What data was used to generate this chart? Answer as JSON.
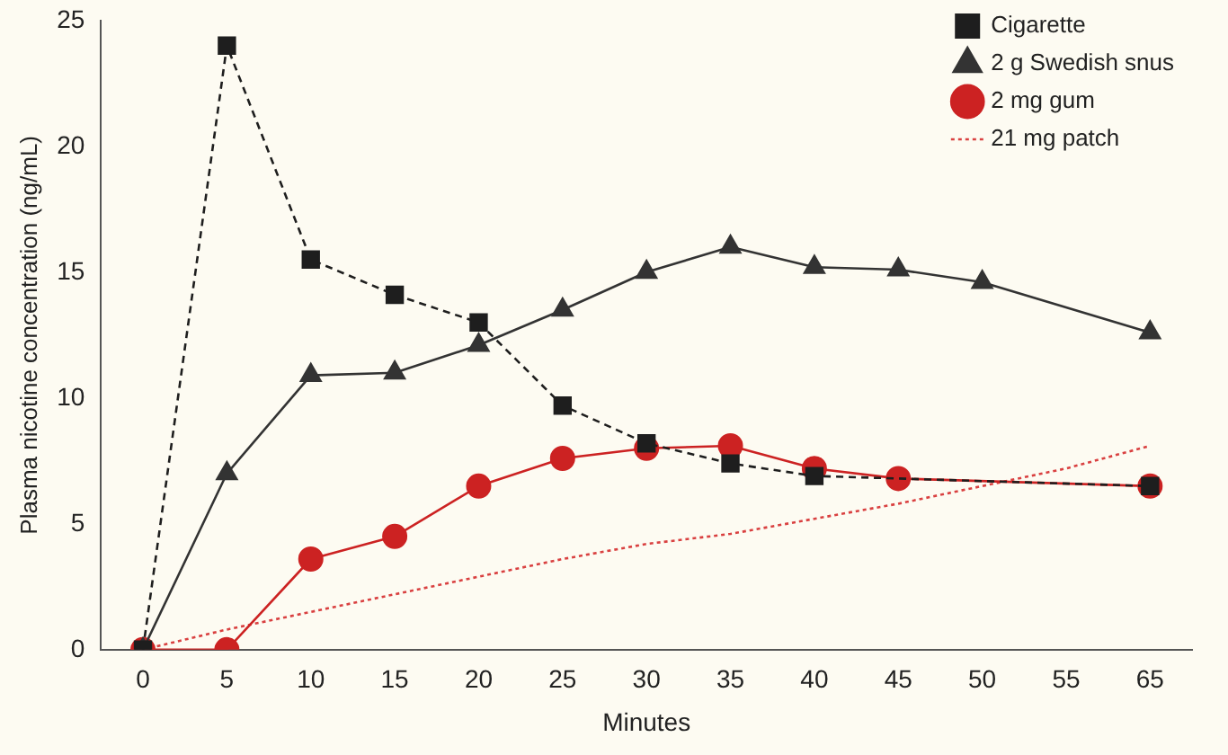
{
  "chart_data": {
    "type": "line",
    "xlabel": "Minutes",
    "ylabel": "Plasma nicotine concentration (ng/mL)",
    "categories": [
      "0",
      "5",
      "10",
      "15",
      "20",
      "25",
      "30",
      "35",
      "40",
      "45",
      "50",
      "55",
      "65"
    ],
    "ylim": [
      0,
      25
    ],
    "yticks": [
      0,
      5,
      10,
      15,
      20,
      25
    ],
    "grid": false,
    "legend": "top right",
    "series": [
      {
        "name": "Cigarette",
        "color": "#1e1e1e",
        "marker": "square",
        "line_style": "dashed",
        "values": [
          0,
          24,
          15.5,
          14.1,
          13.0,
          9.7,
          8.2,
          7.4,
          6.9,
          null,
          null,
          null,
          6.5
        ]
      },
      {
        "name": "2 g Swedish snus",
        "color": "#333333",
        "marker": "triangle",
        "line_style": "solid",
        "values": [
          0,
          7,
          10.9,
          11,
          12.1,
          13.5,
          15,
          16,
          15.2,
          15.1,
          14.6,
          null,
          12.6
        ]
      },
      {
        "name": "2 mg gum",
        "color": "#cc2222",
        "marker": "circle",
        "line_style": "solid",
        "values": [
          0,
          0,
          3.6,
          4.5,
          6.5,
          7.6,
          8,
          8.1,
          7.2,
          6.8,
          null,
          null,
          6.5
        ]
      },
      {
        "name": "21 mg patch",
        "color": "#d94040",
        "marker": "none",
        "line_style": "dotted",
        "values": [
          0,
          0.8,
          1.5,
          2.2,
          2.9,
          3.6,
          4.2,
          4.6,
          5.2,
          5.8,
          6.5,
          7.2,
          8.1
        ]
      }
    ]
  }
}
